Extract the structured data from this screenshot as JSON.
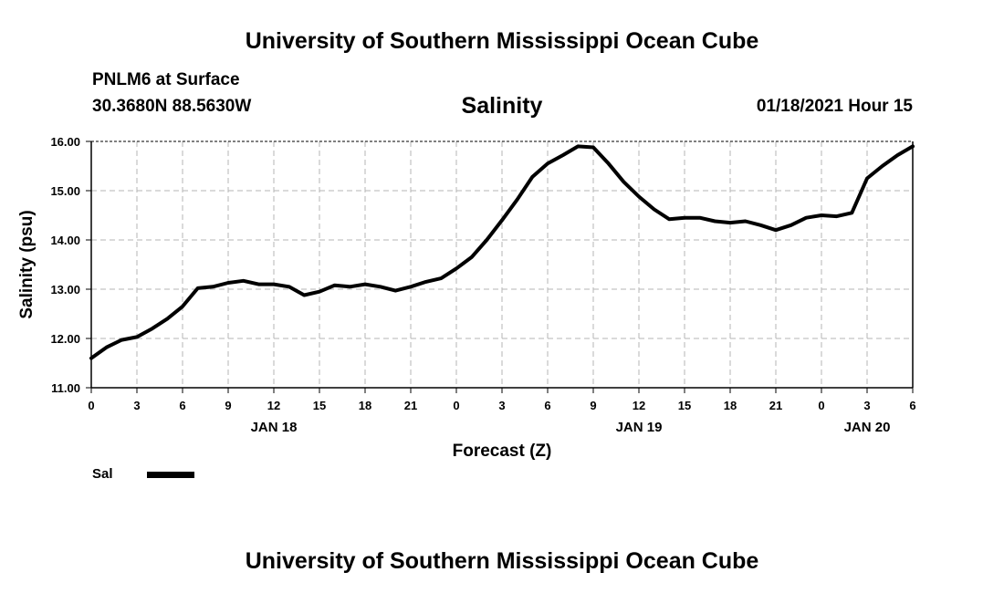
{
  "header": {
    "title": "University of Southern Mississippi Ocean Cube",
    "station": "PNLM6 at Surface",
    "coords": "30.3680N 88.5630W",
    "datetime": "01/18/2021 Hour 15"
  },
  "footer": {
    "title": "University of Southern Mississippi Ocean Cube"
  },
  "legend": {
    "label": "Sal",
    "color": "#000000"
  },
  "chart_data": {
    "type": "line",
    "title": "Salinity",
    "xlabel": "Forecast (Z)",
    "ylabel": "Salinity (psu)",
    "xlim": [
      0,
      54
    ],
    "ylim": [
      11.0,
      16.0
    ],
    "grid": true,
    "x_ticks": [
      0,
      3,
      6,
      9,
      12,
      15,
      18,
      21,
      24,
      27,
      30,
      33,
      36,
      39,
      42,
      45,
      48,
      51,
      54
    ],
    "x_tick_labels": [
      "0",
      "3",
      "6",
      "9",
      "12",
      "15",
      "18",
      "21",
      "0",
      "3",
      "6",
      "9",
      "12",
      "15",
      "18",
      "21",
      "0",
      "3",
      "6"
    ],
    "y_ticks": [
      11.0,
      12.0,
      13.0,
      14.0,
      15.0,
      16.0
    ],
    "y_tick_labels": [
      "11.00",
      "12.00",
      "13.00",
      "14.00",
      "15.00",
      "16.00"
    ],
    "date_labels": [
      {
        "x": 12,
        "label": "JAN 18"
      },
      {
        "x": 36,
        "label": "JAN 19"
      },
      {
        "x": 51,
        "label": "JAN 20"
      }
    ],
    "series": [
      {
        "name": "Sal",
        "x": [
          0,
          1,
          2,
          3,
          4,
          5,
          6,
          7,
          8,
          9,
          10,
          11,
          12,
          13,
          14,
          15,
          16,
          17,
          18,
          19,
          20,
          21,
          22,
          23,
          24,
          25,
          26,
          27,
          28,
          29,
          30,
          31,
          32,
          33,
          34,
          35,
          36,
          37,
          38,
          39,
          40,
          41,
          42,
          43,
          44,
          45,
          46,
          47,
          48,
          49,
          50,
          51,
          52,
          53,
          54
        ],
        "values": [
          11.6,
          11.82,
          11.97,
          12.03,
          12.2,
          12.4,
          12.65,
          13.02,
          13.05,
          13.13,
          13.17,
          13.1,
          13.1,
          13.05,
          12.88,
          12.95,
          13.08,
          13.05,
          13.1,
          13.05,
          12.97,
          13.05,
          13.15,
          13.22,
          13.42,
          13.65,
          14.0,
          14.4,
          14.82,
          15.28,
          15.55,
          15.72,
          15.9,
          15.88,
          15.55,
          15.18,
          14.88,
          14.62,
          14.42,
          14.45,
          14.45,
          14.38,
          14.35,
          14.38,
          14.3,
          14.2,
          14.3,
          14.45,
          14.5,
          14.48,
          14.55,
          15.25,
          15.5,
          15.72,
          15.9
        ]
      }
    ]
  }
}
